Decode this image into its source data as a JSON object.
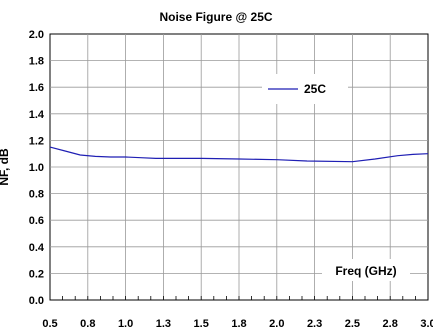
{
  "chart_data": {
    "type": "line",
    "title": "Noise Figure @ 25C",
    "xlabel": "Freq (GHz)",
    "ylabel": "NF, dB",
    "xlim": [
      0.5,
      3.0
    ],
    "ylim": [
      0.0,
      2.0
    ],
    "x_tick_labels": [
      "0.5",
      "0.8",
      "1.0",
      "1.3",
      "1.5",
      "1.8",
      "2.0",
      "2.3",
      "2.5",
      "2.8",
      "3.0"
    ],
    "y_tick_labels": [
      "0.0",
      "0.2",
      "0.4",
      "0.6",
      "0.8",
      "1.0",
      "1.2",
      "1.4",
      "1.6",
      "1.8",
      "2.0"
    ],
    "grid": true,
    "legend_position": "top-right",
    "series": [
      {
        "name": "25C",
        "color": "#1f1fb4",
        "x": [
          0.5,
          0.6,
          0.7,
          0.8,
          0.9,
          1.0,
          1.1,
          1.2,
          1.5,
          1.75,
          2.0,
          2.2,
          2.5,
          2.65,
          2.8,
          2.9,
          3.0
        ],
        "y": [
          1.15,
          1.12,
          1.09,
          1.08,
          1.075,
          1.075,
          1.07,
          1.065,
          1.065,
          1.06,
          1.055,
          1.045,
          1.04,
          1.06,
          1.085,
          1.095,
          1.1
        ]
      }
    ]
  }
}
